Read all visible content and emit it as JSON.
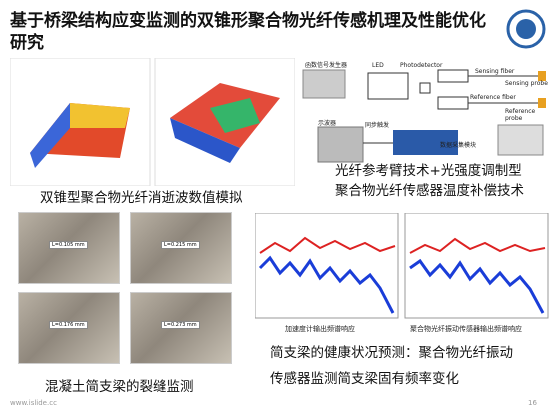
{
  "header": {
    "title": "基于桥梁结构应变监测的双锥形聚合物光纤传感机理及性能优化研究"
  },
  "simulation": {
    "caption": "双锥型聚合物光纤消逝波数值模拟"
  },
  "compensation": {
    "caption": [
      "光纤参考臂技术+光强度调制型",
      "聚合物光纤传感器温度补偿技术"
    ],
    "diagram_labels": [
      "函数信号发生器",
      "LED",
      "Photodetector",
      "Sensing fiber",
      "Sensing probe",
      "Reference fiber",
      "Reference probe",
      "示波器",
      "同步触发",
      "数据采集模块"
    ]
  },
  "crack": {
    "caption": "混凝土简支梁的裂缝监测",
    "photo_labels": [
      "L=0.105 mm",
      "L=0.215 mm",
      "L=0.176 mm",
      "L=0.273 mm"
    ]
  },
  "vibration": {
    "chart_captions": [
      "加速度计输出频谱响应",
      "聚合物光纤振动传感器输出频谱响应"
    ],
    "caption": [
      "简支梁的健康状况预测：聚合物光纤振动",
      "传感器监测简支梁固有频率变化"
    ]
  },
  "footer": {
    "url": "www.islide.cc",
    "page": "16"
  }
}
